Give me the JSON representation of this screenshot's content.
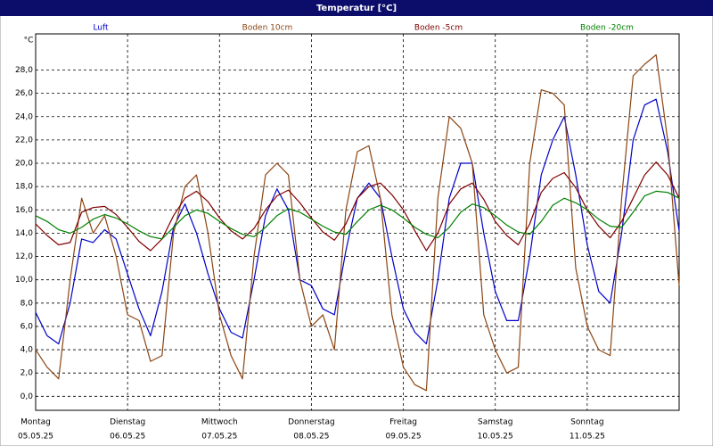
{
  "chart_data": {
    "type": "line",
    "title": "Temperatur [°C]",
    "y_label": "°C",
    "x": [
      0,
      3,
      6,
      9,
      12,
      15,
      18,
      21,
      24,
      27,
      30,
      33,
      36,
      39,
      42,
      45,
      48,
      51,
      54,
      57,
      60,
      63,
      66,
      69,
      72,
      75,
      78,
      81,
      84,
      87,
      90,
      93,
      96,
      99,
      102,
      105,
      108,
      111,
      114,
      117,
      120,
      123,
      126,
      129,
      132,
      135,
      138,
      141,
      144,
      147,
      150,
      153,
      156,
      159,
      162,
      165,
      168
    ],
    "xlim": [
      0,
      168
    ],
    "xticks": [
      {
        "value": 0,
        "label": "Montag"
      },
      {
        "value": 24,
        "label": "Dienstag"
      },
      {
        "value": 48,
        "label": "Mittwoch"
      },
      {
        "value": 72,
        "label": "Donnerstag"
      },
      {
        "value": 96,
        "label": "Freitag"
      },
      {
        "value": 120,
        "label": "Samstag"
      },
      {
        "value": 144,
        "label": "Sonntag"
      }
    ],
    "x_dates": [
      "05.05.25",
      "06.05.25",
      "07.05.25",
      "08.05.25",
      "09.05.25",
      "10.05.25",
      "11.05.25"
    ],
    "ylim": [
      -1.2,
      31.1
    ],
    "yticks": [
      {
        "value": 0,
        "label": "0,0"
      },
      {
        "value": 2,
        "label": "2,0"
      },
      {
        "value": 4,
        "label": "4,0"
      },
      {
        "value": 6,
        "label": "6,0"
      },
      {
        "value": 8,
        "label": "8,0"
      },
      {
        "value": 10,
        "label": "10,0"
      },
      {
        "value": 12,
        "label": "12,0"
      },
      {
        "value": 14,
        "label": "14,0"
      },
      {
        "value": 16,
        "label": "16,0"
      },
      {
        "value": 18,
        "label": "18,0"
      },
      {
        "value": 20,
        "label": "20,0"
      },
      {
        "value": 22,
        "label": "22,0"
      },
      {
        "value": 24,
        "label": "24,0"
      },
      {
        "value": 26,
        "label": "26,0"
      },
      {
        "value": 28,
        "label": "28,0"
      }
    ],
    "grid": true,
    "series": [
      {
        "name": "Luft",
        "color": "#0000c8",
        "values": [
          7.2,
          5.2,
          4.5,
          8,
          13.5,
          13.2,
          14.3,
          13.5,
          10.5,
          7.5,
          5.2,
          9,
          14.5,
          16.5,
          14,
          10.5,
          7.5,
          5.5,
          5,
          10,
          15.5,
          17.8,
          16,
          10,
          9.5,
          7.5,
          7,
          12.5,
          17,
          18.3,
          17,
          12,
          7.5,
          5.5,
          4.5,
          10,
          17,
          20,
          20,
          14,
          9,
          6.5,
          6.5,
          12,
          19,
          22,
          24,
          19,
          13,
          9,
          8,
          14,
          22,
          25,
          25.5,
          21,
          14.2
        ]
      },
      {
        "name": "Boden 10cm",
        "color": "#8b4513",
        "values": [
          4,
          2.5,
          1.5,
          10,
          17,
          14,
          15.5,
          12,
          7,
          6.5,
          3,
          3.5,
          14,
          18,
          19,
          14,
          7,
          3.5,
          1.5,
          12,
          19,
          20,
          19,
          10,
          6,
          7,
          4,
          16,
          21,
          21.5,
          17,
          7,
          2.5,
          1,
          0.5,
          17,
          24,
          23,
          20,
          7,
          4,
          2,
          2.5,
          20,
          26.3,
          26,
          25,
          11,
          6,
          4,
          3.5,
          17,
          27.5,
          28.5,
          29.3,
          22,
          9.5
        ]
      },
      {
        "name": "Boden -5cm",
        "color": "#800000",
        "values": [
          14.8,
          13.8,
          13,
          13.2,
          15.8,
          16.2,
          16.3,
          15.6,
          14.5,
          13.3,
          12.5,
          13.5,
          15.5,
          17,
          17.6,
          16.7,
          15.3,
          14.2,
          13.5,
          14.4,
          16,
          17.2,
          17.7,
          16.6,
          15.3,
          14.1,
          13.4,
          14.8,
          17,
          18,
          18.3,
          17.3,
          16,
          14.2,
          12.5,
          14,
          16.5,
          17.8,
          18.3,
          16.9,
          15,
          13.8,
          13,
          14.8,
          17.5,
          18.7,
          19.2,
          17.9,
          16,
          14.6,
          13.6,
          15,
          17,
          19,
          20.1,
          19,
          17
        ]
      },
      {
        "name": "Boden -20cm",
        "color": "#008000",
        "values": [
          15.5,
          15,
          14.3,
          14,
          14.5,
          15.2,
          15.6,
          15.3,
          14.8,
          14.2,
          13.7,
          13.5,
          14.5,
          15.5,
          16,
          15.7,
          15,
          14.4,
          13.9,
          13.7,
          14.5,
          15.5,
          16.1,
          15.8,
          15.2,
          14.6,
          14.1,
          13.9,
          15,
          16,
          16.4,
          16,
          15.3,
          14.5,
          13.9,
          13.6,
          14.5,
          15.8,
          16.5,
          16.2,
          15.5,
          14.7,
          14.1,
          13.9,
          15,
          16.4,
          17,
          16.6,
          16,
          15.2,
          14.6,
          14.5,
          15.8,
          17.2,
          17.6,
          17.5,
          17
        ]
      }
    ]
  }
}
